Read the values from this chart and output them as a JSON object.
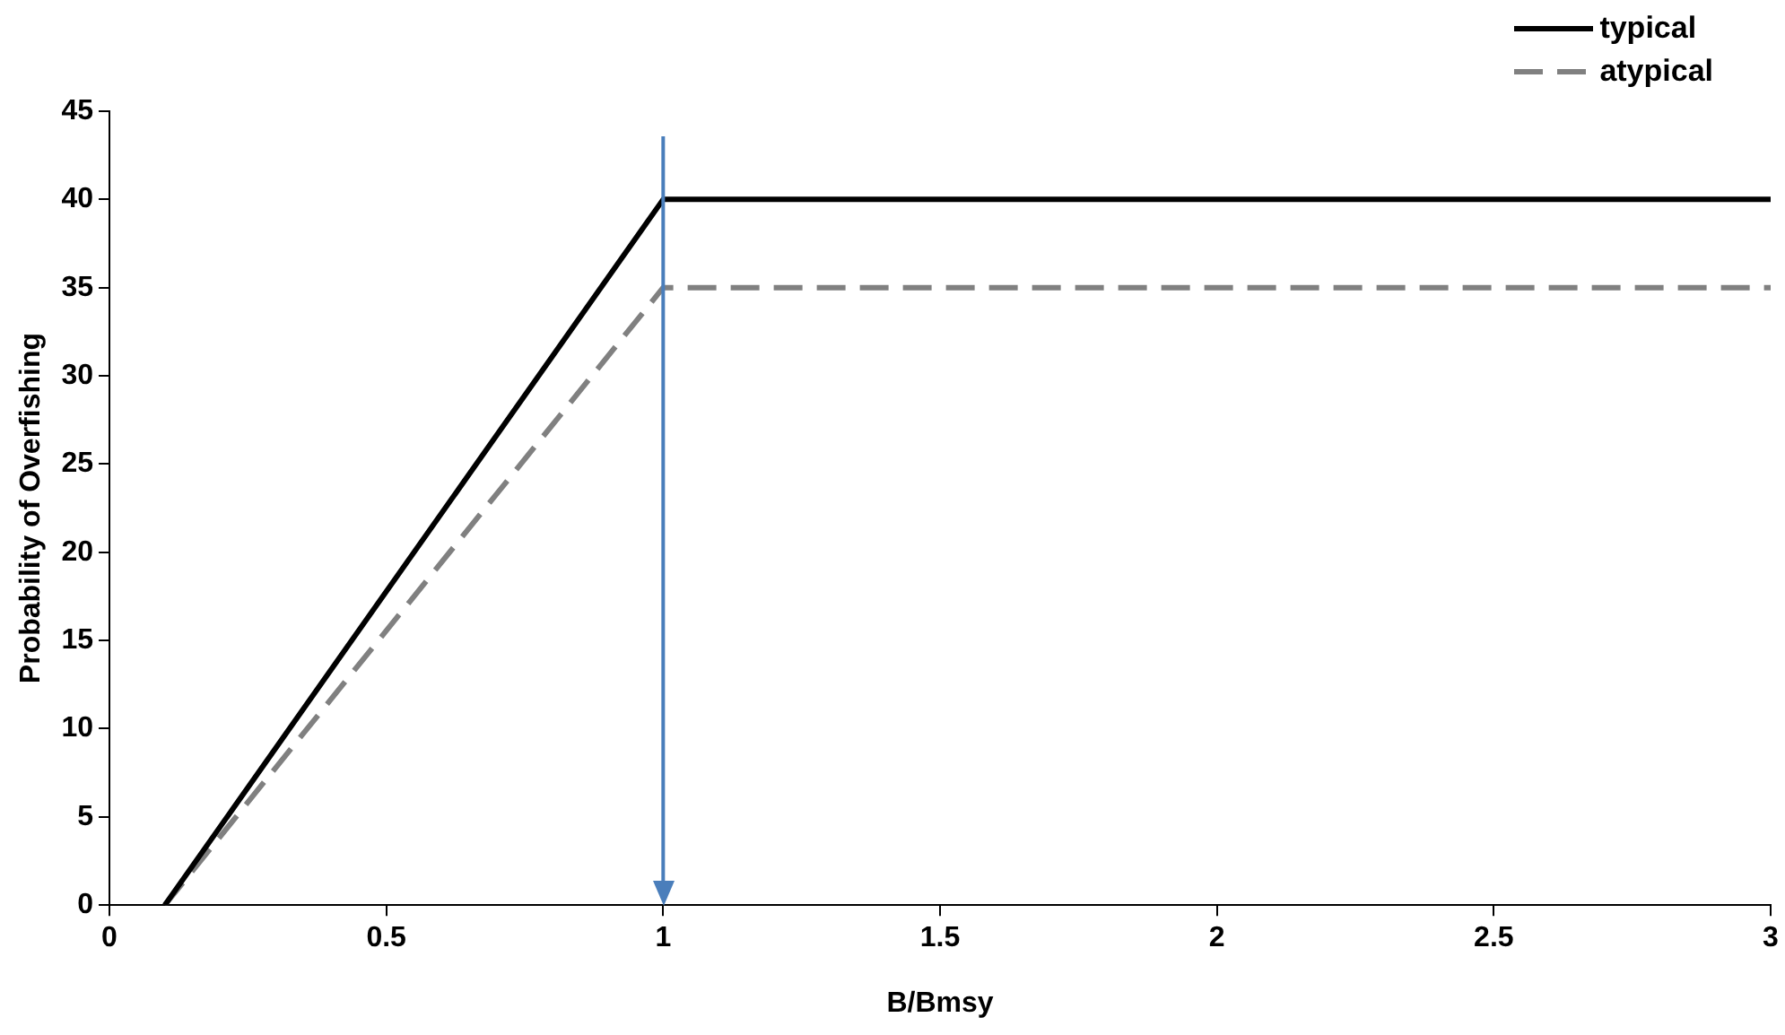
{
  "chart_data": {
    "type": "line",
    "xlabel": "B/Bmsy",
    "ylabel": "Probability of Overfishing",
    "series": [
      {
        "name": "typical",
        "color": "#000000",
        "line_style": "solid",
        "x": [
          0.1,
          1,
          3
        ],
        "values": [
          0,
          40,
          40
        ]
      },
      {
        "name": "atypical",
        "color": "#808080",
        "line_style": "dashed",
        "x": [
          0.1,
          1,
          3
        ],
        "values": [
          0,
          35,
          35
        ]
      }
    ],
    "xlim": [
      0,
      3
    ],
    "xticks": [
      0,
      0.5,
      1,
      1.5,
      2,
      2.5,
      3
    ],
    "ylim": [
      0,
      45
    ],
    "yticks": [
      0,
      5,
      10,
      15,
      20,
      25,
      30,
      35,
      40,
      45
    ],
    "ref_lines": [
      {
        "axis": "x",
        "value": 1,
        "color": "#4a7ebb"
      }
    ],
    "grid": false,
    "legend": "top right",
    "marker": "none"
  }
}
